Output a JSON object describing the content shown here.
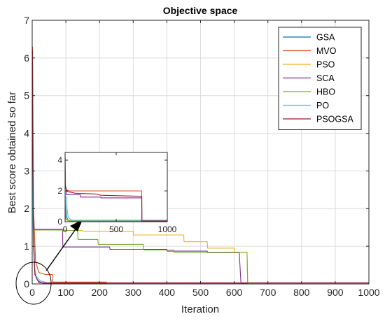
{
  "chart_data": [
    {
      "type": "line",
      "title": "Objective space",
      "xlabel": "Iteration",
      "ylabel": "Best score obtained so far",
      "xlim": [
        0,
        1000
      ],
      "ylim": [
        0,
        7
      ],
      "xticks": [
        0,
        100,
        200,
        300,
        400,
        500,
        600,
        700,
        800,
        900,
        1000
      ],
      "yticks": [
        0,
        1,
        2,
        3,
        4,
        5,
        6,
        7
      ],
      "grid": true,
      "legend": "top-right",
      "series": [
        {
          "name": "GSA",
          "color": "#0072BD",
          "x": [
            1,
            3,
            8,
            15,
            30,
            1000
          ],
          "y": [
            5.2,
            1.5,
            0.3,
            0.1,
            0.02,
            0.02
          ]
        },
        {
          "name": "MVO",
          "color": "#D95319",
          "x": [
            1,
            4,
            10,
            20,
            40,
            60,
            61,
            220,
            221,
            1000
          ],
          "y": [
            6.3,
            2.0,
            0.6,
            0.3,
            0.25,
            0.25,
            0.05,
            0.05,
            0.02,
            0.02
          ]
        },
        {
          "name": "PSO",
          "color": "#EDB120",
          "x": [
            1,
            3,
            5,
            100,
            101,
            150,
            151,
            300,
            301,
            450,
            451,
            520,
            521,
            600,
            601,
            638,
            640,
            1000
          ],
          "y": [
            6.0,
            1.8,
            1.43,
            1.43,
            1.42,
            1.42,
            1.4,
            1.4,
            1.3,
            1.3,
            1.12,
            1.12,
            0.95,
            0.95,
            0.84,
            0.84,
            0.02,
            0.02
          ]
        },
        {
          "name": "SCA",
          "color": "#7E2F8E",
          "x": [
            1,
            3,
            6,
            90,
            91,
            230,
            231,
            400,
            401,
            520,
            521,
            615,
            620,
            1000
          ],
          "y": [
            5.5,
            1.8,
            1.45,
            1.45,
            0.98,
            0.98,
            0.92,
            0.92,
            0.87,
            0.87,
            0.83,
            0.83,
            0.02,
            0.02
          ]
        },
        {
          "name": "HBO",
          "color": "#77AC30",
          "x": [
            1,
            3,
            5,
            90,
            91,
            135,
            136,
            195,
            196,
            330,
            331,
            420,
            421,
            638,
            640,
            1000
          ],
          "y": [
            5.8,
            1.6,
            1.43,
            1.43,
            1.42,
            1.42,
            1.18,
            1.18,
            1.05,
            1.05,
            0.9,
            0.9,
            0.84,
            0.84,
            0.02,
            0.02
          ]
        },
        {
          "name": "PO",
          "color": "#4DBEEE",
          "x": [
            1,
            3,
            6,
            12,
            25,
            45,
            1000
          ],
          "y": [
            4.5,
            1.2,
            0.5,
            0.2,
            0.08,
            0.03,
            0.03
          ]
        },
        {
          "name": "PSOGSA",
          "color": "#A2142F",
          "x": [
            1,
            2,
            4,
            8,
            20,
            1000
          ],
          "y": [
            6.2,
            3.5,
            1.2,
            0.25,
            0.03,
            0.03
          ]
        }
      ]
    },
    {
      "type": "line",
      "title": "",
      "xlim": [
        0,
        1000
      ],
      "ylim": [
        0,
        4.5
      ],
      "xticks": [
        0,
        500,
        1000
      ],
      "yticks": [
        0,
        2,
        4
      ],
      "grid": false,
      "series": [
        {
          "name": "GSA",
          "color": "#0072BD",
          "x": [
            1,
            8,
            15,
            30,
            60,
            1000
          ],
          "y": [
            1.5,
            0.7,
            0.3,
            0.1,
            0.05,
            0.05
          ]
        },
        {
          "name": "MVO",
          "color": "#D95319",
          "x": [
            1,
            5,
            10,
            20,
            40,
            750,
            751,
            1000
          ],
          "y": [
            4.2,
            2.3,
            2.1,
            2.05,
            2.0,
            2.0,
            0.05,
            0.05
          ]
        },
        {
          "name": "PSO",
          "color": "#EDB120",
          "x": [
            1,
            5,
            10,
            50,
            1000
          ],
          "y": [
            2.0,
            0.4,
            0.15,
            0.08,
            0.08
          ]
        },
        {
          "name": "SCA",
          "color": "#7E2F8E",
          "x": [
            1,
            10,
            11,
            150,
            151,
            350,
            351,
            750,
            752,
            1000
          ],
          "y": [
            2.2,
            2.2,
            1.75,
            1.75,
            1.6,
            1.6,
            1.55,
            1.55,
            0.05,
            0.05
          ]
        },
        {
          "name": "HBO",
          "color": "#77AC30",
          "x": [
            1,
            5,
            10,
            40,
            1000
          ],
          "y": [
            1.2,
            0.3,
            0.12,
            0.05,
            0.05
          ]
        },
        {
          "name": "PO",
          "color": "#4DBEEE",
          "x": [
            1,
            15,
            20,
            30,
            60,
            1000
          ],
          "y": [
            1.6,
            1.6,
            0.8,
            0.3,
            0.1,
            0.1
          ]
        },
        {
          "name": "PSOGSA",
          "color": "#A2142F",
          "x": [
            1,
            10,
            15,
            30,
            100,
            300,
            350,
            750,
            751,
            1000
          ],
          "y": [
            2.4,
            2.1,
            2.0,
            1.95,
            1.85,
            1.8,
            1.72,
            1.65,
            0.05,
            0.05
          ]
        }
      ]
    }
  ]
}
